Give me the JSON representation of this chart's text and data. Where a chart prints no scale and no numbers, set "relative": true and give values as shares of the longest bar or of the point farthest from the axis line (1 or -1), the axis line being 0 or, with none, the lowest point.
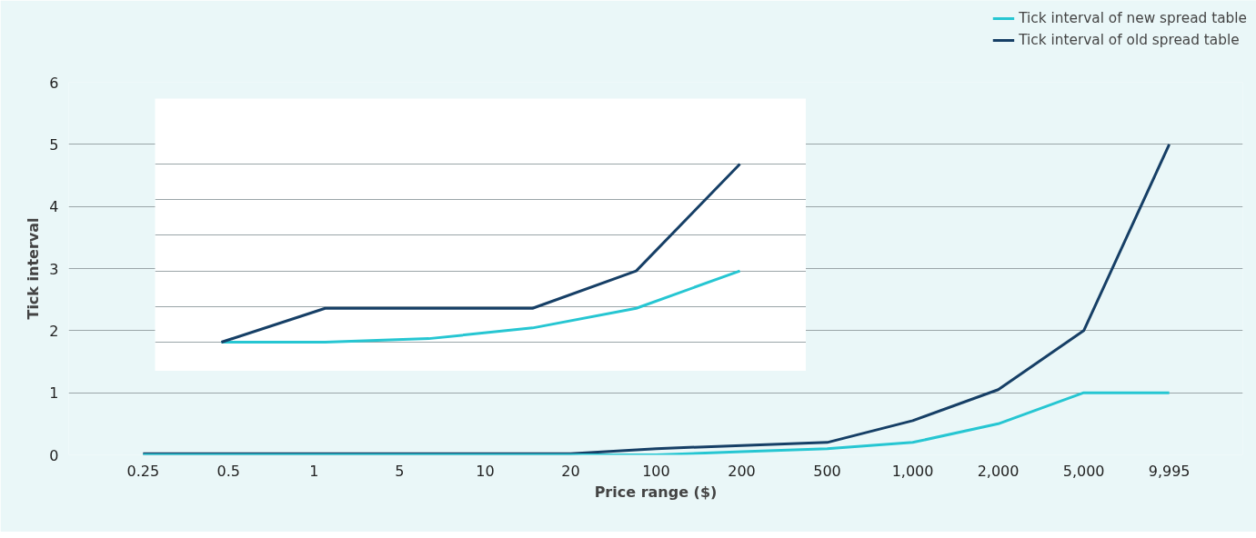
{
  "chart_data": [
    {
      "type": "line",
      "xlabel": "Price range ($)",
      "ylabel": "Tick interval",
      "categories": [
        "0.25",
        "0.5",
        "1",
        "5",
        "10",
        "20",
        "100",
        "200",
        "500",
        "1,000",
        "2,000",
        "5,000",
        "9,995"
      ],
      "series": [
        {
          "name": "Tick interval of new spread table",
          "color": "#26c6d2",
          "values": [
            0,
            0,
            0,
            0,
            0,
            0,
            0,
            0.05,
            0.1,
            0.2,
            0.5,
            1,
            1
          ]
        },
        {
          "name": "Tick interval of old spread table",
          "color": "#163f66",
          "values": [
            0.02,
            0.02,
            0.02,
            0.02,
            0.02,
            0.02,
            0.1,
            0.15,
            0.2,
            0.55,
            1.05,
            2,
            5
          ]
        }
      ],
      "ylim": [
        0,
        6
      ],
      "yticks": [
        0,
        1,
        2,
        3,
        4,
        5,
        6
      ],
      "grid": "y",
      "legend": "top right"
    },
    {
      "type": "line",
      "relative": true,
      "categories": [
        null,
        null,
        null,
        null,
        null,
        null
      ],
      "series": [
        {
          "color": "#163f66",
          "values": [
            0,
            0.19,
            0.19,
            0.19,
            0.4,
            1
          ]
        },
        {
          "color": "#26c6d2",
          "values": [
            0,
            0,
            0.02,
            0.08,
            0.19,
            0.4
          ]
        }
      ],
      "grid": "y",
      "tick_labels": false
    }
  ]
}
